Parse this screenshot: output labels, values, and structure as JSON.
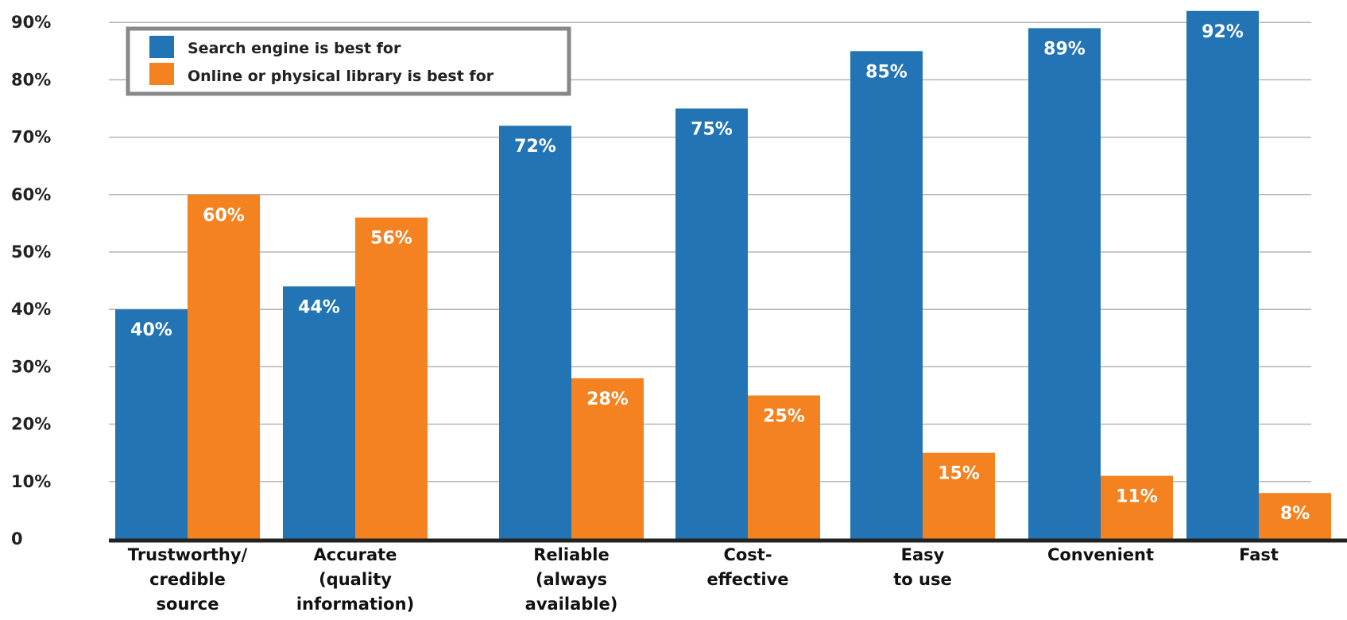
{
  "chart_data": {
    "type": "bar",
    "categories": [
      "Trustworthy/\ncredible\nsource",
      "Accurate\n(quality\ninformation)",
      "Reliable\n(always\navailable)",
      "Cost-\neffective",
      "Easy\nto use",
      "Convenient",
      "Fast"
    ],
    "series": [
      {
        "name": "Search engine is best for",
        "values": [
          40,
          44,
          72,
          75,
          85,
          89,
          92
        ],
        "labels": [
          "40%",
          "44%",
          "72%",
          "75%",
          "85%",
          "89%",
          "92%"
        ],
        "color": "#2374b5"
      },
      {
        "name": "Online or physical library is best for",
        "values": [
          60,
          56,
          28,
          25,
          15,
          11,
          8
        ],
        "labels": [
          "60%",
          "56%",
          "28%",
          "25%",
          "15%",
          "11%",
          "8%"
        ],
        "color": "#f58220"
      }
    ],
    "yticks": [
      0,
      10,
      20,
      30,
      40,
      50,
      60,
      70,
      80,
      90
    ],
    "ytick_labels": [
      "0",
      "10%",
      "20%",
      "30%",
      "40%",
      "50%",
      "60%",
      "70%",
      "80%",
      "90%"
    ],
    "ylim": [
      0,
      92
    ],
    "grid": true,
    "legend_position": "top-left",
    "title": "",
    "xlabel": "",
    "ylabel": ""
  }
}
